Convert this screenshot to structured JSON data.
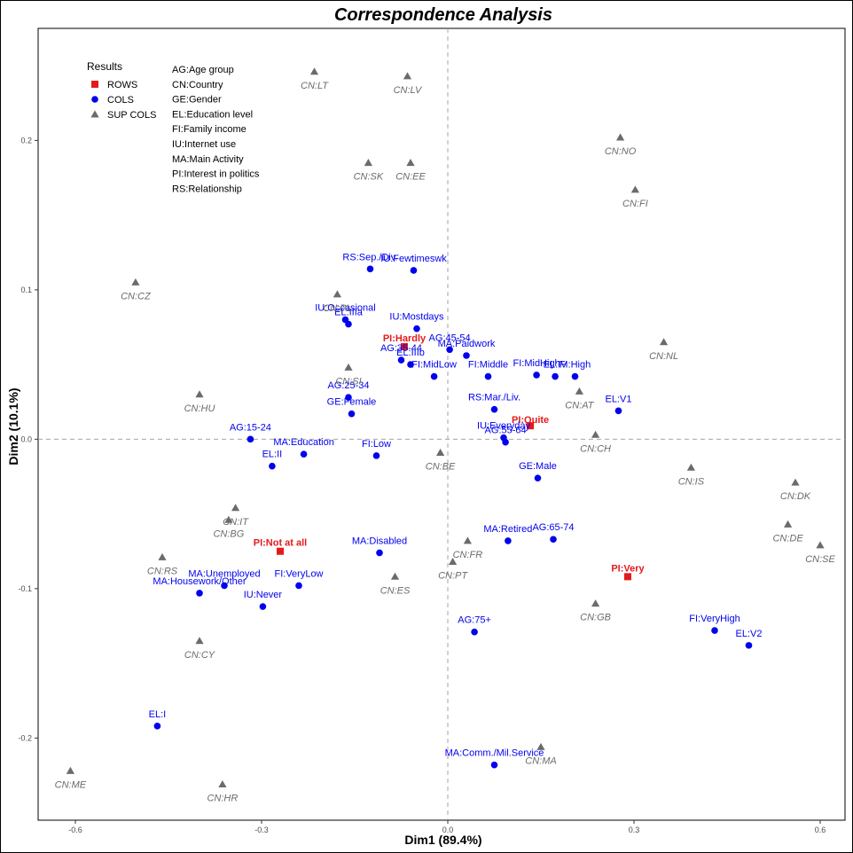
{
  "chart_data": {
    "type": "scatter",
    "title": "Correspondence Analysis",
    "xlabel": "Dim1 (89.4%)",
    "ylabel": "Dim2 (10.1%)",
    "xlim": [
      -0.66,
      0.64
    ],
    "ylim": [
      -0.255,
      0.275
    ],
    "xticks": [
      -0.6,
      -0.3,
      0.0,
      0.3,
      0.6
    ],
    "xtick_labels": [
      "-0.6",
      "-0.3",
      "0.0",
      "0.3",
      "0.6"
    ],
    "yticks": [
      -0.2,
      -0.1,
      0.0,
      0.1,
      0.2
    ],
    "ytick_labels": [
      "-0.2",
      "-0.1",
      "0.0",
      "0.1",
      "0.2"
    ],
    "grid": false,
    "reference_lines": "dashed lines at x=0 and y=0",
    "legend": {
      "title": "Results",
      "placement": "top-left",
      "entries": [
        {
          "name": "ROWS",
          "color": "#e31a1c",
          "shape": "square"
        },
        {
          "name": "COLS",
          "color": "#0000ee",
          "shape": "circle"
        },
        {
          "name": "SUP COLS",
          "color": "#6b6b6b",
          "shape": "triangle"
        }
      ]
    },
    "abbreviations": [
      "AG:Age group",
      "CN:Country",
      "GE:Gender",
      "EL:Education level",
      "FI:Family income",
      "IU:Internet use",
      "MA:Main Activity",
      "PI:Interest in politics",
      "RS:Relationship"
    ],
    "series": [
      {
        "name": "ROWS",
        "color": "#e31a1c",
        "shape": "square",
        "points": [
          {
            "label": "PI:Hardly",
            "x": -0.07,
            "y": 0.062
          },
          {
            "label": "PI:Quite",
            "x": 0.133,
            "y": 0.009
          },
          {
            "label": "PI:Not at all",
            "x": -0.27,
            "y": -0.075
          },
          {
            "label": "PI:Very",
            "x": 0.29,
            "y": -0.092
          }
        ]
      },
      {
        "name": "COLS",
        "color": "#0000ee",
        "shape": "circle",
        "points": [
          {
            "label": "RS:Sep./Div.",
            "x": -0.125,
            "y": 0.114
          },
          {
            "label": "IU:Fewtimeswk",
            "x": -0.055,
            "y": 0.113
          },
          {
            "label": "IU:Occasional",
            "x": -0.165,
            "y": 0.08
          },
          {
            "label": "EL:IIIa",
            "x": -0.16,
            "y": 0.077
          },
          {
            "label": "IU:Mostdays",
            "x": -0.05,
            "y": 0.074
          },
          {
            "label": "AG:45-54",
            "x": 0.003,
            "y": 0.06
          },
          {
            "label": "AG:35-44",
            "x": -0.075,
            "y": 0.053
          },
          {
            "label": "EL:IIIb",
            "x": -0.06,
            "y": 0.05
          },
          {
            "label": "MA:Paidwork",
            "x": 0.03,
            "y": 0.056
          },
          {
            "label": "FI:MidHigh",
            "x": 0.143,
            "y": 0.043
          },
          {
            "label": "FI:High",
            "x": 0.205,
            "y": 0.042
          },
          {
            "label": "EL:IV",
            "x": 0.173,
            "y": 0.042
          },
          {
            "label": "FI:MidLow",
            "x": -0.022,
            "y": 0.042
          },
          {
            "label": "FI:Middle",
            "x": 0.065,
            "y": 0.042
          },
          {
            "label": "AG:25-34",
            "x": -0.16,
            "y": 0.028
          },
          {
            "label": "RS:Mar./Liv.",
            "x": 0.075,
            "y": 0.02
          },
          {
            "label": "GE:Female",
            "x": -0.155,
            "y": 0.017
          },
          {
            "label": "EL:V1",
            "x": 0.275,
            "y": 0.019
          },
          {
            "label": "IU:Everyday",
            "x": 0.09,
            "y": 0.001
          },
          {
            "label": "AG:55-64",
            "x": 0.093,
            "y": -0.002
          },
          {
            "label": "AG:15-24",
            "x": -0.318,
            "y": 0.0
          },
          {
            "label": "MA:Education",
            "x": -0.232,
            "y": -0.01
          },
          {
            "label": "FI:Low",
            "x": -0.115,
            "y": -0.011
          },
          {
            "label": "EL:II",
            "x": -0.283,
            "y": -0.018
          },
          {
            "label": "GE:Male",
            "x": 0.145,
            "y": -0.026
          },
          {
            "label": "AG:65-74",
            "x": 0.17,
            "y": -0.067
          },
          {
            "label": "MA:Retired",
            "x": 0.097,
            "y": -0.068
          },
          {
            "label": "MA:Disabled",
            "x": -0.11,
            "y": -0.076
          },
          {
            "label": "MA:Unemployed",
            "x": -0.36,
            "y": -0.098
          },
          {
            "label": "FI:VeryLow",
            "x": -0.24,
            "y": -0.098
          },
          {
            "label": "MA:Housework/Other",
            "x": -0.4,
            "y": -0.103
          },
          {
            "label": "IU:Never",
            "x": -0.298,
            "y": -0.112
          },
          {
            "label": "AG:75+",
            "x": 0.043,
            "y": -0.129
          },
          {
            "label": "FI:VeryHigh",
            "x": 0.43,
            "y": -0.128
          },
          {
            "label": "EL:V2",
            "x": 0.485,
            "y": -0.138
          },
          {
            "label": "EL:I",
            "x": -0.468,
            "y": -0.192
          },
          {
            "label": "MA:Comm./Mil.Service",
            "x": 0.075,
            "y": -0.218
          }
        ]
      },
      {
        "name": "SUP COLS",
        "color": "#6b6b6b",
        "shape": "triangle",
        "points": [
          {
            "label": "CN:LT",
            "x": -0.215,
            "y": 0.246
          },
          {
            "label": "CN:LV",
            "x": -0.065,
            "y": 0.243
          },
          {
            "label": "CN:SK",
            "x": -0.128,
            "y": 0.185
          },
          {
            "label": "CN:EE",
            "x": -0.06,
            "y": 0.185
          },
          {
            "label": "CN:NO",
            "x": 0.278,
            "y": 0.202
          },
          {
            "label": "CN:FI",
            "x": 0.302,
            "y": 0.167
          },
          {
            "label": "CN:CZ",
            "x": -0.503,
            "y": 0.105
          },
          {
            "label": "CN:PL",
            "x": -0.178,
            "y": 0.097
          },
          {
            "label": "CN:NL",
            "x": 0.348,
            "y": 0.065
          },
          {
            "label": "CN:SI",
            "x": -0.16,
            "y": 0.048
          },
          {
            "label": "CN:AT",
            "x": 0.212,
            "y": 0.032
          },
          {
            "label": "CN:HU",
            "x": -0.4,
            "y": 0.03
          },
          {
            "label": "CN:CH",
            "x": 0.238,
            "y": 0.003
          },
          {
            "label": "CN:BE",
            "x": -0.012,
            "y": -0.009
          },
          {
            "label": "CN:IS",
            "x": 0.392,
            "y": -0.019
          },
          {
            "label": "CN:DK",
            "x": 0.56,
            "y": -0.029
          },
          {
            "label": "CN:IT",
            "x": -0.342,
            "y": -0.046
          },
          {
            "label": "CN:BG",
            "x": -0.353,
            "y": -0.054
          },
          {
            "label": "CN:DE",
            "x": 0.548,
            "y": -0.057
          },
          {
            "label": "CN:FR",
            "x": 0.032,
            "y": -0.068
          },
          {
            "label": "CN:SE",
            "x": 0.6,
            "y": -0.071
          },
          {
            "label": "CN:RS",
            "x": -0.46,
            "y": -0.079
          },
          {
            "label": "CN:PT",
            "x": 0.008,
            "y": -0.082
          },
          {
            "label": "CN:ES",
            "x": -0.085,
            "y": -0.092
          },
          {
            "label": "CN:GB",
            "x": 0.238,
            "y": -0.11
          },
          {
            "label": "CN:CY",
            "x": -0.4,
            "y": -0.135
          },
          {
            "label": "CN:MA",
            "x": 0.15,
            "y": -0.206
          },
          {
            "label": "CN:ME",
            "x": -0.608,
            "y": -0.222
          },
          {
            "label": "CN:HR",
            "x": -0.363,
            "y": -0.231
          }
        ]
      }
    ]
  }
}
